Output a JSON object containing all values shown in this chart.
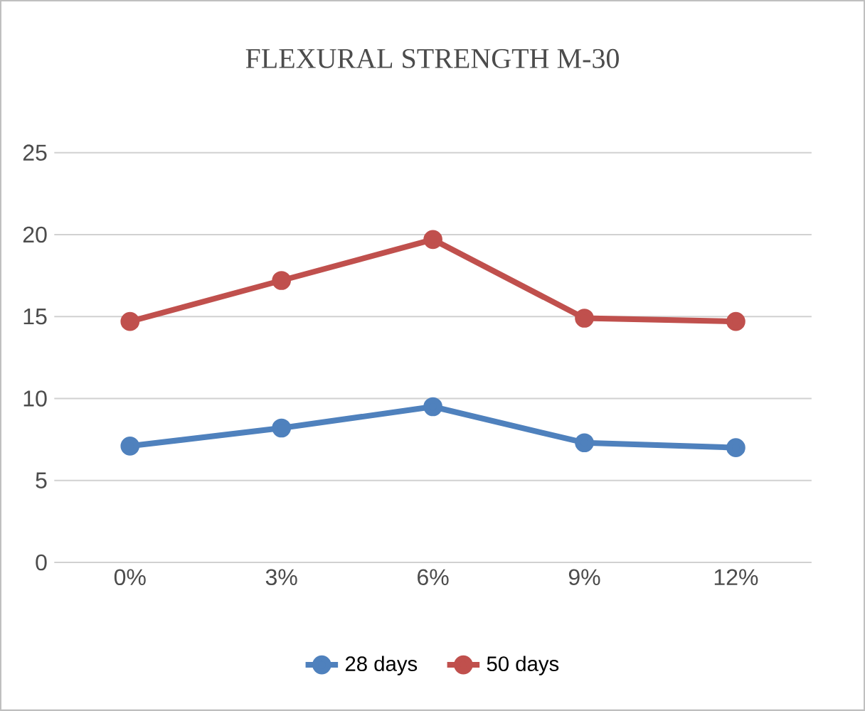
{
  "chart_data": {
    "type": "line",
    "title": "FLEXURAL STRENGTH M-30",
    "categories": [
      "0%",
      "3%",
      "6%",
      "9%",
      "12%"
    ],
    "series": [
      {
        "name": "28 days",
        "color": "#4f81bd",
        "values": [
          7.1,
          8.2,
          9.5,
          7.3,
          7.0
        ]
      },
      {
        "name": "50 days",
        "color": "#c0504d",
        "values": [
          14.7,
          17.2,
          19.7,
          14.9,
          14.7
        ]
      }
    ],
    "ylim": [
      0,
      25
    ],
    "yticks": [
      0,
      5,
      10,
      15,
      20,
      25
    ],
    "grid": "y",
    "legend": "bottom",
    "marker": "circle",
    "line_style": "solid"
  }
}
